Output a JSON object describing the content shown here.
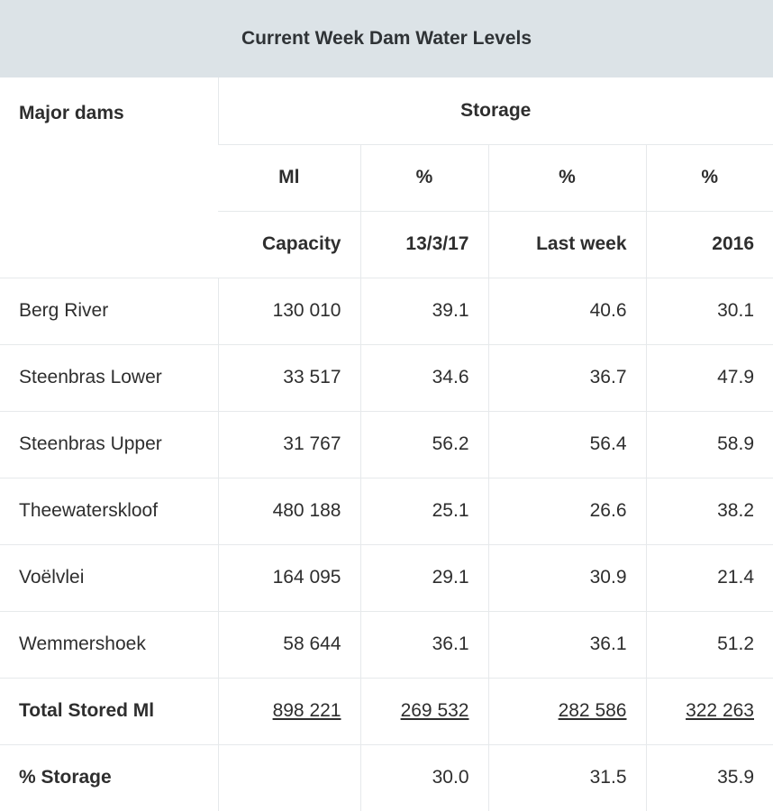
{
  "title": "Current Week Dam Water Levels",
  "header": {
    "major_dams": "Major dams",
    "storage": "Storage",
    "units": [
      "Ml",
      "%",
      "%",
      "%"
    ],
    "columns": [
      "Capacity",
      "13/3/17",
      "Last week",
      "2016"
    ]
  },
  "rows": [
    {
      "name": "Berg River",
      "capacity": "130 010",
      "current": "39.1",
      "last_week": "40.6",
      "y2016": "30.1"
    },
    {
      "name": "Steenbras Lower",
      "capacity": "33 517",
      "current": "34.6",
      "last_week": "36.7",
      "y2016": "47.9"
    },
    {
      "name": "Steenbras Upper",
      "capacity": "31 767",
      "current": "56.2",
      "last_week": "56.4",
      "y2016": "58.9"
    },
    {
      "name": "Theewaterskloof",
      "capacity": "480 188",
      "current": "25.1",
      "last_week": "26.6",
      "y2016": "38.2"
    },
    {
      "name": "Voëlvlei",
      "capacity": "164 095",
      "current": "29.1",
      "last_week": "30.9",
      "y2016": "21.4"
    },
    {
      "name": "Wemmershoek",
      "capacity": "58 644",
      "current": "36.1",
      "last_week": "36.1",
      "y2016": "51.2"
    }
  ],
  "total": {
    "label": "Total Stored Ml",
    "capacity": "898 221",
    "current": "269 532",
    "last_week": "282 586",
    "y2016": "322 263"
  },
  "percent": {
    "label": "% Storage",
    "capacity": "",
    "current": "30.0",
    "last_week": "31.5",
    "y2016": "35.9"
  }
}
